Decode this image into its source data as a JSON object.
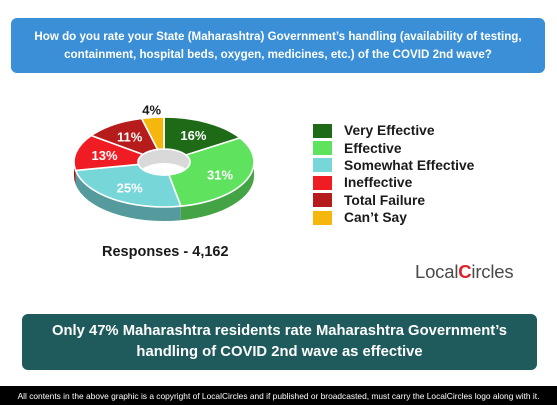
{
  "question": "How do you rate your State (Maharashtra) Government’s handling (availability of testing, containment, hospital beds, oxygen, medicines, etc.) of the COVID 2nd wave?",
  "chart_data": {
    "type": "pie",
    "categories": [
      "Very Effective",
      "Effective",
      "Somewhat Effective",
      "Ineffective",
      "Total Failure",
      "Can’t Say"
    ],
    "values": [
      16,
      31,
      25,
      13,
      11,
      4
    ],
    "labels": [
      "16%",
      "31%",
      "25%",
      "13%",
      "11%",
      "4%"
    ],
    "colors": [
      "#1e6a16",
      "#5fe35f",
      "#76d6d8",
      "#ef1c24",
      "#b71c1c",
      "#f5b70d"
    ],
    "style": "donut-3d",
    "legend": "right"
  },
  "responses": "Responses - 4,162",
  "logo": {
    "prefix": "Local",
    "c": "C",
    "suffix": "ircles"
  },
  "conclusion": "Only 47% Maharashtra residents rate Maharashtra Government’s handling of COVID 2nd wave as effective",
  "footer": "All contents in the above graphic is a copyright of LocalCircles and if published or broadcasted, must carry the LocalCircles logo along with it."
}
